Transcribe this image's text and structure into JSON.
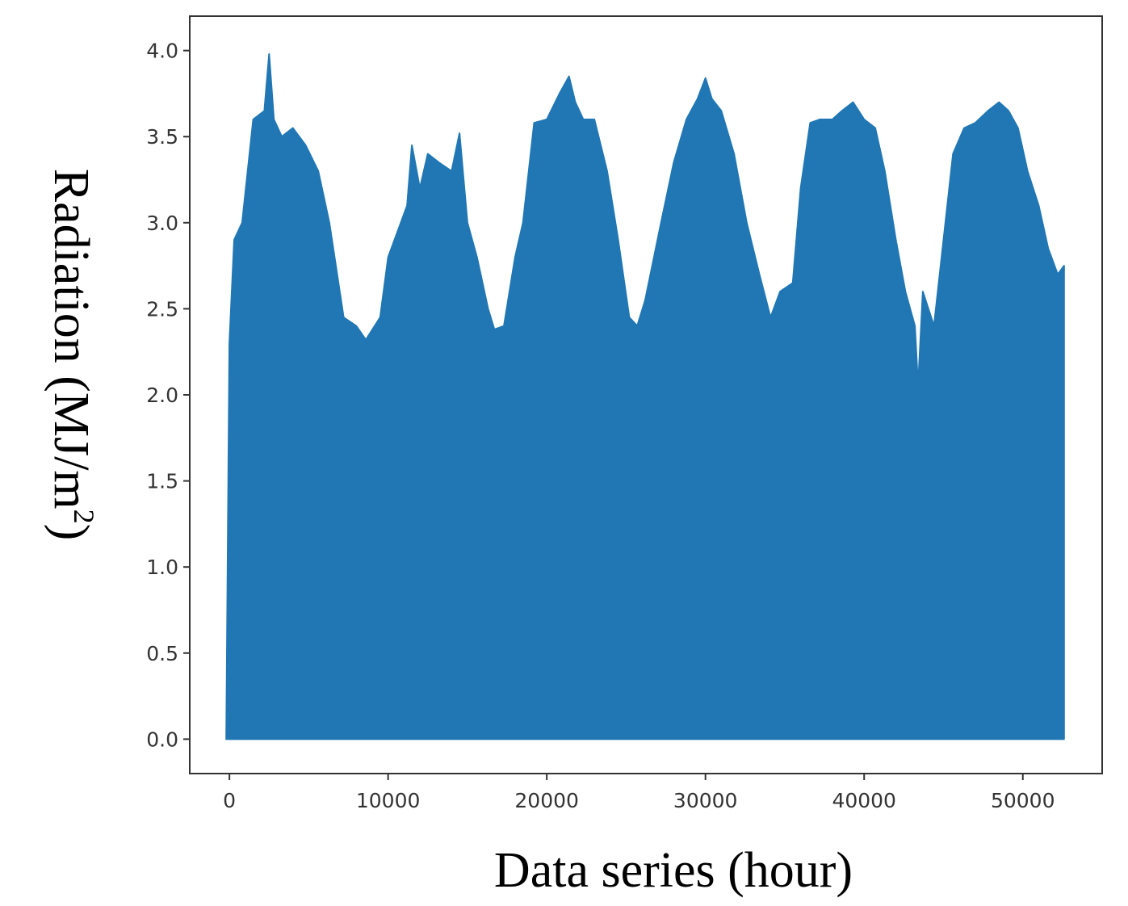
{
  "chart_data": {
    "type": "area",
    "title": "",
    "xlabel": "Data series (hour)",
    "ylabel_main": "Radiation (MJ/m",
    "ylabel_sup": "2",
    "ylabel_close": ")",
    "xlim": [
      -2500,
      55000
    ],
    "ylim": [
      -0.2,
      4.2
    ],
    "x_ticks": [
      0,
      10000,
      20000,
      30000,
      40000,
      50000
    ],
    "x_tick_labels": [
      "0",
      "10000",
      "20000",
      "30000",
      "40000",
      "50000"
    ],
    "y_ticks": [
      0.0,
      0.5,
      1.0,
      1.5,
      2.0,
      2.5,
      3.0,
      3.5,
      4.0
    ],
    "y_tick_labels": [
      "0.0",
      "0.5",
      "1.0",
      "1.5",
      "2.0",
      "2.5",
      "3.0",
      "3.5",
      "4.0"
    ],
    "grid": false,
    "legend": "none",
    "color": "#2077b4",
    "series": [
      {
        "baseline": 0,
        "x": [
          -200,
          0,
          300,
          800,
          1500,
          2200,
          2500,
          2800,
          3300,
          4000,
          4800,
          5600,
          6300,
          7200,
          8000,
          8600,
          9500,
          10000,
          10800,
          11200,
          11500,
          12000,
          12500,
          13200,
          14000,
          14500,
          15000,
          15600,
          16300,
          16700,
          17300,
          18000,
          18500,
          19200,
          20000,
          20800,
          21400,
          21800,
          22300,
          23000,
          23800,
          24500,
          25200,
          25700,
          26200,
          27200,
          28000,
          28800,
          29500,
          30000,
          30400,
          31000,
          31800,
          32600,
          33400,
          34100,
          34700,
          35500,
          36000,
          36600,
          37200,
          38000,
          38600,
          39300,
          40000,
          40700,
          41300,
          42000,
          42600,
          43200,
          43400,
          43700,
          44400,
          45000,
          45600,
          46300,
          47000,
          47800,
          48500,
          49100,
          49700,
          50300,
          51000,
          51600,
          52200,
          52600,
          52600
        ],
        "y": [
          0,
          2.3,
          2.9,
          3.0,
          3.6,
          3.65,
          3.98,
          3.6,
          3.5,
          3.55,
          3.45,
          3.3,
          3.0,
          2.45,
          2.4,
          2.32,
          2.45,
          2.8,
          3.0,
          3.1,
          3.45,
          3.2,
          3.4,
          3.35,
          3.3,
          3.52,
          3.0,
          2.8,
          2.5,
          2.38,
          2.4,
          2.8,
          3.0,
          3.58,
          3.6,
          3.75,
          3.85,
          3.7,
          3.6,
          3.6,
          3.3,
          2.9,
          2.45,
          2.4,
          2.55,
          3.0,
          3.35,
          3.6,
          3.72,
          3.84,
          3.72,
          3.65,
          3.4,
          3.0,
          2.7,
          2.45,
          2.6,
          2.65,
          3.2,
          3.58,
          3.6,
          3.6,
          3.65,
          3.7,
          3.6,
          3.55,
          3.3,
          2.9,
          2.6,
          2.4,
          2.05,
          2.6,
          2.4,
          2.9,
          3.4,
          3.55,
          3.58,
          3.65,
          3.7,
          3.65,
          3.55,
          3.3,
          3.1,
          2.85,
          2.7,
          2.75,
          0
        ]
      }
    ]
  }
}
